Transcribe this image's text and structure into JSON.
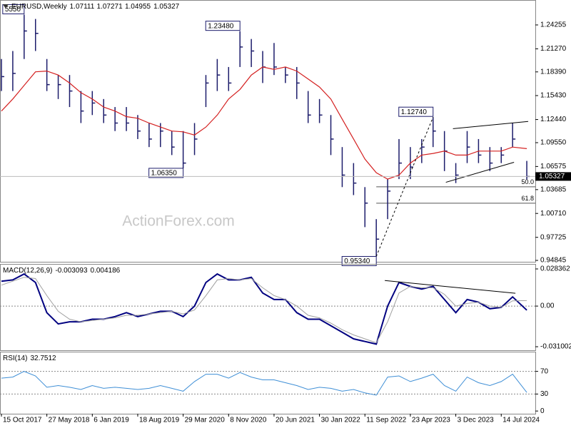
{
  "chart_data": [
    {
      "type": "ohlc",
      "title": "EURUSD,Weekly",
      "header_values": [
        1.07111,
        1.07271,
        1.04955,
        1.05327
      ],
      "watermark": "ActionForex.com",
      "x": [
        0,
        8,
        16,
        24,
        32,
        40,
        48,
        56,
        64,
        72,
        80,
        88,
        96,
        104,
        112,
        120,
        128,
        136,
        144,
        152,
        160,
        168,
        176,
        184,
        192,
        200,
        208,
        216,
        224,
        232,
        240,
        248,
        256,
        264,
        272,
        280,
        288,
        296,
        304,
        312,
        320,
        328,
        336,
        344,
        352,
        360,
        370
      ],
      "series": [
        {
          "type": "ohlc",
          "color": "#1c1c6b",
          "high": [
            1.2,
            1.21,
            1.2555,
            1.25,
            1.2,
            1.18,
            1.18,
            1.16,
            1.16,
            1.15,
            1.14,
            1.14,
            1.13,
            1.12,
            1.12,
            1.11,
            1.11,
            1.12,
            1.18,
            1.2,
            1.19,
            1.2348,
            1.225,
            1.21,
            1.22,
            1.19,
            1.19,
            1.16,
            1.15,
            1.13,
            1.09,
            1.07,
            1.04,
            1.0,
            1.05,
            1.1,
            1.09,
            1.1,
            1.1274,
            1.11,
            1.07,
            1.11,
            1.1,
            1.09,
            1.09,
            1.12,
            1.07271
          ],
          "low": [
            1.16,
            1.16,
            1.2,
            1.21,
            1.16,
            1.15,
            1.14,
            1.12,
            1.13,
            1.12,
            1.11,
            1.11,
            1.1,
            1.09,
            1.09,
            1.08,
            1.0635,
            1.08,
            1.14,
            1.16,
            1.16,
            1.19,
            1.19,
            1.17,
            1.18,
            1.17,
            1.15,
            1.12,
            1.12,
            1.08,
            1.04,
            1.03,
            0.99,
            0.9534,
            1.0,
            1.05,
            1.05,
            1.07,
            1.09,
            1.06,
            1.045,
            1.07,
            1.07,
            1.06,
            1.07,
            1.09,
            1.04955
          ],
          "values": [
            1.178,
            1.182,
            1.235,
            1.232,
            1.168,
            1.168,
            1.16,
            1.135,
            1.145,
            1.13,
            1.12,
            1.12,
            1.11,
            1.1,
            1.11,
            1.09,
            1.07,
            1.1,
            1.17,
            1.18,
            1.17,
            1.215,
            1.21,
            1.19,
            1.19,
            1.18,
            1.17,
            1.13,
            1.13,
            1.1,
            1.055,
            1.045,
            1.02,
            0.975,
            1.035,
            1.07,
            1.065,
            1.09,
            1.11,
            1.085,
            1.055,
            1.09,
            1.08,
            1.07,
            1.08,
            1.1,
            1.05327
          ]
        },
        {
          "type": "line",
          "color": "#d42020",
          "values": [
            1.135,
            1.15,
            1.167,
            1.184,
            1.185,
            1.18,
            1.17,
            1.158,
            1.15,
            1.14,
            1.135,
            1.128,
            1.126,
            1.12,
            1.115,
            1.11,
            1.109,
            1.105,
            1.115,
            1.13,
            1.15,
            1.162,
            1.18,
            1.19,
            1.187,
            1.19,
            1.185,
            1.175,
            1.165,
            1.15,
            1.125,
            1.1,
            1.075,
            1.058,
            1.05,
            1.055,
            1.07,
            1.08,
            1.082,
            1.085,
            1.08,
            1.08,
            1.085,
            1.085,
            1.085,
            1.09,
            1.088
          ]
        }
      ],
      "annotations": [
        {
          "text": "5550",
          "x": 16,
          "y": 1.2555,
          "side": "above"
        },
        {
          "text": "1.23480",
          "x": 168,
          "y": 1.2348,
          "side": "above"
        },
        {
          "text": "1.06350",
          "x": 128,
          "y": 1.0635,
          "side": "below"
        },
        {
          "text": "0.95340",
          "x": 264,
          "y": 0.9534,
          "side": "below"
        },
        {
          "text": "1.12740",
          "x": 304,
          "y": 1.1274,
          "side": "above"
        }
      ],
      "levels": [
        {
          "y": 1.0404,
          "x": 264,
          "label": "50.0"
        },
        {
          "y": 1.0199,
          "x": 264,
          "label": "61.8"
        }
      ],
      "trendlines": [
        {
          "x": [
            264,
            304
          ],
          "y": [
            0.9534,
            1.1274
          ],
          "dashed": true
        },
        {
          "x": [
            318,
            371
          ],
          "y": [
            1.113,
            1.122
          ],
          "dashed": false
        },
        {
          "x": [
            313,
            361
          ],
          "y": [
            1.046,
            1.071
          ],
          "dashed": false
        }
      ],
      "xlim": [
        -1,
        376
      ],
      "ylim": [
        0.9467,
        1.2737
      ],
      "yticks": [
        1.24255,
        {
          "value": 1.2127,
          "label": "1.21270"
        },
        {
          "value": 1.1839,
          "label": "1.18390"
        },
        {
          "value": 1.1543,
          "label": "1.15430"
        },
        {
          "value": 1.1244,
          "label": "1.12440"
        },
        {
          "value": 1.0955,
          "label": "1.09550"
        },
        1.06575,
        1.03685,
        {
          "value": 1.0071,
          "label": "1.00710"
        },
        0.97725,
        0.94845
      ]
    },
    {
      "type": "line",
      "title": "MACD(12,26,9)",
      "x": [
        0,
        8,
        16,
        24,
        32,
        40,
        48,
        56,
        64,
        72,
        80,
        88,
        96,
        104,
        112,
        120,
        128,
        136,
        144,
        152,
        160,
        168,
        176,
        184,
        192,
        200,
        208,
        216,
        224,
        232,
        240,
        248,
        256,
        264,
        272,
        280,
        288,
        296,
        304,
        312,
        320,
        328,
        336,
        344,
        352,
        360,
        370
      ],
      "series": [
        {
          "color": "#000080",
          "width": 2,
          "values": [
            0.019,
            0.02,
            0.0245,
            0.018,
            -0.005,
            -0.0136,
            -0.012,
            -0.012,
            -0.01,
            -0.01,
            -0.008,
            -0.005,
            -0.008,
            -0.006,
            -0.004,
            -0.004,
            -0.008,
            0,
            0.018,
            0.0245,
            0.02,
            0.02,
            0.022,
            0.01,
            0.005,
            0.005,
            -0.005,
            -0.01,
            -0.01,
            -0.015,
            -0.02,
            -0.025,
            -0.027,
            -0.029,
            0,
            0.018,
            0.015,
            0.013,
            0.015,
            0.005,
            -0.005,
            0.005,
            0.003,
            -0.002,
            -0.001,
            0.007,
            -0.003093
          ]
        },
        {
          "color": "#a0a0a0",
          "width": 1,
          "values": [
            0.016,
            0.019,
            0.022,
            0.021,
            0.008,
            -0.004,
            -0.01,
            -0.012,
            -0.011,
            -0.01,
            -0.009,
            -0.007,
            -0.007,
            -0.006,
            -0.005,
            -0.004,
            -0.006,
            -0.003,
            0.008,
            0.02,
            0.021,
            0.02,
            0.021,
            0.014,
            0.008,
            0.005,
            0,
            -0.007,
            -0.009,
            -0.013,
            -0.018,
            -0.022,
            -0.025,
            -0.028,
            -0.012,
            0.01,
            0.015,
            0.014,
            0.014,
            0.009,
            0,
            0.002,
            0.003,
            0,
            -0.001,
            0.004,
            0.004186
          ]
        }
      ],
      "levels": [
        0
      ],
      "trendlines": [
        {
          "x": [
            270,
            362
          ],
          "y": [
            0.0195,
            0.0098
          ],
          "dashed": false
        }
      ],
      "xlim": [
        -1,
        376
      ],
      "ylim": [
        -0.0337,
        0.03217
      ],
      "yticks": [
        0.028362,
        {
          "value": 0,
          "label": "0.00"
        },
        -0.031002
      ]
    },
    {
      "type": "line",
      "title": "RSI(14)",
      "x": [
        0,
        8,
        16,
        24,
        32,
        40,
        48,
        56,
        64,
        72,
        80,
        88,
        96,
        104,
        112,
        120,
        128,
        136,
        144,
        152,
        160,
        168,
        176,
        184,
        192,
        200,
        208,
        216,
        224,
        232,
        240,
        248,
        256,
        264,
        272,
        280,
        288,
        296,
        304,
        312,
        320,
        328,
        336,
        344,
        352,
        360,
        370
      ],
      "series": [
        {
          "color": "#3f8fd6",
          "width": 1,
          "values": [
            58,
            60,
            70,
            62,
            42,
            45,
            42,
            38,
            45,
            40,
            42,
            40,
            38,
            40,
            45,
            40,
            35,
            52,
            65,
            65,
            58,
            68,
            60,
            55,
            55,
            50,
            45,
            38,
            42,
            40,
            35,
            38,
            32,
            28,
            60,
            62,
            52,
            58,
            65,
            45,
            35,
            60,
            50,
            45,
            52,
            65,
            32.7512
          ]
        }
      ],
      "levels": [
        70,
        30
      ],
      "xlim": [
        -1,
        376
      ],
      "ylim": [
        -4.8,
        104.8
      ],
      "yticks": [
        70,
        30,
        0
      ],
      "xticks": [
        {
          "value": 0,
          "label": "15 Oct 2017"
        },
        {
          "value": 32,
          "label": "27 May 2018"
        },
        {
          "value": 64,
          "label": "6 Jan 2019"
        },
        {
          "value": 96,
          "label": "18 Aug 2019"
        },
        {
          "value": 128,
          "label": "29 Mar 2020"
        },
        {
          "value": 160,
          "label": "8 Nov 2020"
        },
        {
          "value": 192,
          "label": "20 Jun 2021"
        },
        {
          "value": 224,
          "label": "30 Jan 2022"
        },
        {
          "value": 256,
          "label": "11 Sep 2022"
        },
        {
          "value": 288,
          "label": "23 Apr 2023"
        },
        {
          "value": 320,
          "label": "3 Dec 2023"
        },
        {
          "value": 352,
          "label": "14 Jul 2024"
        }
      ]
    }
  ]
}
